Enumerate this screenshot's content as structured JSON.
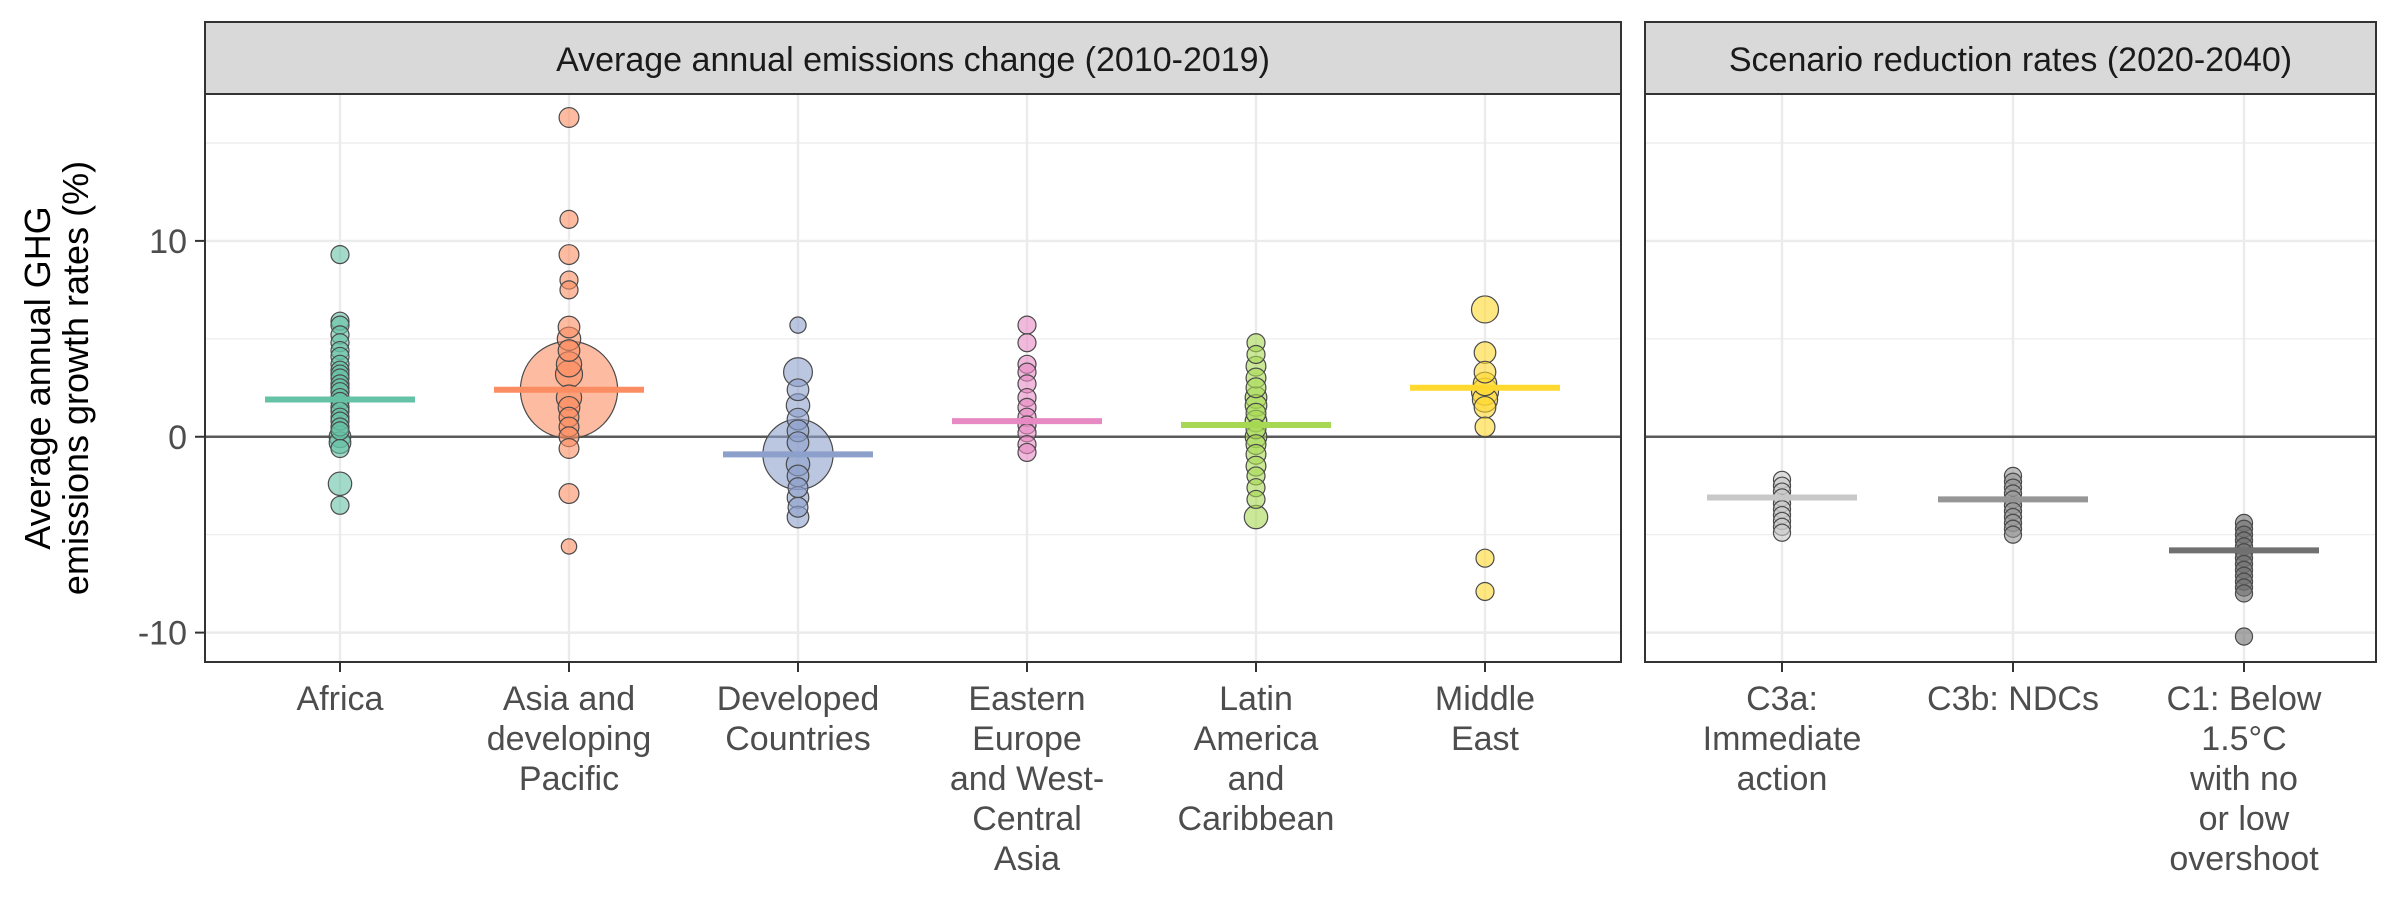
{
  "chart_data": [
    {
      "type": "scatter",
      "panel_title": "Average annual emissions change (2010-2019)",
      "ylabel": "Average annual GHG emissions growth rates (%)",
      "ylabel_lines": [
        "Average annual GHG",
        "emissions growth rates (%)"
      ],
      "ylim": [
        -11.5,
        17.5
      ],
      "yticks": [
        10,
        0,
        -10
      ],
      "ytick_labels": [
        "10",
        "0",
        "-10"
      ],
      "grid": true,
      "reference_line": 0,
      "categories": [
        {
          "label": [
            "Africa"
          ],
          "color": "#66c2a5",
          "mean": 1.9,
          "points": [
            [
              9.3,
              1
            ],
            [
              5.9,
              1
            ],
            [
              5.7,
              1
            ],
            [
              5.2,
              1
            ],
            [
              4.8,
              1
            ],
            [
              4.4,
              1
            ],
            [
              4.1,
              1
            ],
            [
              3.7,
              1
            ],
            [
              3.4,
              1
            ],
            [
              3.2,
              1
            ],
            [
              3.0,
              1
            ],
            [
              2.7,
              1
            ],
            [
              2.5,
              1
            ],
            [
              2.3,
              1
            ],
            [
              2.0,
              1
            ],
            [
              1.8,
              1
            ],
            [
              1.5,
              1
            ],
            [
              1.3,
              1
            ],
            [
              1.0,
              1
            ],
            [
              0.8,
              1
            ],
            [
              0.5,
              1
            ],
            [
              0.3,
              1
            ],
            [
              0.0,
              1.2
            ],
            [
              -0.3,
              1.2
            ],
            [
              -0.6,
              1
            ],
            [
              -2.4,
              1.3
            ],
            [
              -3.5,
              1
            ]
          ]
        },
        {
          "label": [
            "Asia and",
            "developing",
            "Pacific"
          ],
          "color": "#fc8d62",
          "mean": 2.4,
          "points": [
            [
              16.3,
              1.1
            ],
            [
              11.1,
              1
            ],
            [
              9.3,
              1.1
            ],
            [
              8.0,
              1
            ],
            [
              7.5,
              1
            ],
            [
              5.6,
              1.2
            ],
            [
              5.0,
              1.3
            ],
            [
              4.4,
              1.2
            ],
            [
              3.7,
              1.4
            ],
            [
              3.2,
              1.5
            ],
            [
              2.4,
              5.4
            ],
            [
              2.0,
              1.4
            ],
            [
              1.5,
              1.2
            ],
            [
              1.0,
              1.1
            ],
            [
              0.5,
              1.1
            ],
            [
              0.0,
              1.1
            ],
            [
              -0.6,
              1.1
            ],
            [
              -2.9,
              1.1
            ],
            [
              -5.6,
              0.85
            ]
          ]
        },
        {
          "label": [
            "Developed",
            "Countries"
          ],
          "color": "#8da0cb",
          "mean": -0.9,
          "points": [
            [
              5.7,
              0.9
            ],
            [
              3.3,
              1.6
            ],
            [
              2.4,
              1.2
            ],
            [
              1.6,
              1.3
            ],
            [
              0.9,
              1.2
            ],
            [
              0.3,
              1.2
            ],
            [
              -0.3,
              1.2
            ],
            [
              -0.9,
              3.9
            ],
            [
              -1.4,
              1.3
            ],
            [
              -2.0,
              1.2
            ],
            [
              -2.6,
              1.1
            ],
            [
              -3.1,
              1.2
            ],
            [
              -3.6,
              1.1
            ],
            [
              -4.1,
              1.2
            ]
          ]
        },
        {
          "label": [
            "Eastern",
            "Europe",
            "and West-",
            "Central",
            "Asia"
          ],
          "color": "#e78ac3",
          "mean": 0.8,
          "points": [
            [
              5.7,
              1
            ],
            [
              4.8,
              1
            ],
            [
              3.7,
              1
            ],
            [
              3.3,
              1
            ],
            [
              2.7,
              1
            ],
            [
              2.0,
              1
            ],
            [
              1.5,
              1
            ],
            [
              1.0,
              1
            ],
            [
              0.6,
              1
            ],
            [
              0.2,
              1
            ],
            [
              -0.4,
              1
            ],
            [
              -0.8,
              1
            ]
          ]
        },
        {
          "label": [
            "Latin",
            "America",
            "and",
            "Caribbean"
          ],
          "color": "#a6d854",
          "mean": 0.6,
          "points": [
            [
              4.8,
              1
            ],
            [
              4.2,
              1
            ],
            [
              3.6,
              1.1
            ],
            [
              3.0,
              1.1
            ],
            [
              2.5,
              1.1
            ],
            [
              2.0,
              1.2
            ],
            [
              1.6,
              1.2
            ],
            [
              1.2,
              1.1
            ],
            [
              0.8,
              1.2
            ],
            [
              0.4,
              1.1
            ],
            [
              0.0,
              1.2
            ],
            [
              -0.4,
              1.1
            ],
            [
              -0.9,
              1.1
            ],
            [
              -1.5,
              1.1
            ],
            [
              -2.0,
              1
            ],
            [
              -2.6,
              1
            ],
            [
              -3.2,
              1
            ],
            [
              -4.1,
              1.3
            ]
          ]
        },
        {
          "label": [
            "Middle",
            "East"
          ],
          "color": "#ffd92f",
          "mean": 2.5,
          "points": [
            [
              6.5,
              1.5
            ],
            [
              4.3,
              1.2
            ],
            [
              3.3,
              1.2
            ],
            [
              2.7,
              1.3
            ],
            [
              2.3,
              1.5
            ],
            [
              1.9,
              1.4
            ],
            [
              1.5,
              1.2
            ],
            [
              0.5,
              1.1
            ],
            [
              -6.2,
              1
            ],
            [
              -7.9,
              1
            ]
          ]
        }
      ]
    },
    {
      "type": "scatter",
      "panel_title": "Scenario reduction rates (2020-2040)",
      "ylim": [
        -11.5,
        17.5
      ],
      "reference_line": 0,
      "categories": [
        {
          "label": [
            "C3a:",
            "Immediate",
            "action"
          ],
          "color": "#c8c8c8",
          "mean": -3.1,
          "points": [
            [
              -2.2,
              0.95
            ],
            [
              -2.5,
              0.95
            ],
            [
              -2.8,
              0.95
            ],
            [
              -3.1,
              0.95
            ],
            [
              -3.4,
              0.95
            ],
            [
              -3.7,
              0.95
            ],
            [
              -4.0,
              0.95
            ],
            [
              -4.3,
              0.95
            ],
            [
              -4.6,
              0.95
            ],
            [
              -4.9,
              0.95
            ]
          ]
        },
        {
          "label": [
            "C3b: NDCs"
          ],
          "color": "#969696",
          "mean": -3.2,
          "points": [
            [
              -2.0,
              0.95
            ],
            [
              -2.3,
              0.95
            ],
            [
              -2.6,
              0.95
            ],
            [
              -2.9,
              0.95
            ],
            [
              -3.2,
              0.95
            ],
            [
              -3.5,
              0.95
            ],
            [
              -3.8,
              0.95
            ],
            [
              -4.1,
              0.95
            ],
            [
              -4.4,
              0.95
            ],
            [
              -4.7,
              0.95
            ],
            [
              -5.0,
              0.95
            ]
          ]
        },
        {
          "label": [
            "C1: Below",
            "1.5°C",
            "with no",
            "or low",
            "overshoot"
          ],
          "color": "#707070",
          "mean": -5.8,
          "points": [
            [
              -4.4,
              0.95
            ],
            [
              -4.7,
              0.95
            ],
            [
              -5.0,
              0.95
            ],
            [
              -5.3,
              0.95
            ],
            [
              -5.6,
              0.95
            ],
            [
              -5.9,
              0.95
            ],
            [
              -6.2,
              0.95
            ],
            [
              -6.5,
              0.95
            ],
            [
              -6.8,
              0.95
            ],
            [
              -7.1,
              0.95
            ],
            [
              -7.4,
              0.95
            ],
            [
              -7.7,
              0.95
            ],
            [
              -8.0,
              0.95
            ],
            [
              -10.2,
              0.95
            ]
          ]
        }
      ]
    }
  ]
}
